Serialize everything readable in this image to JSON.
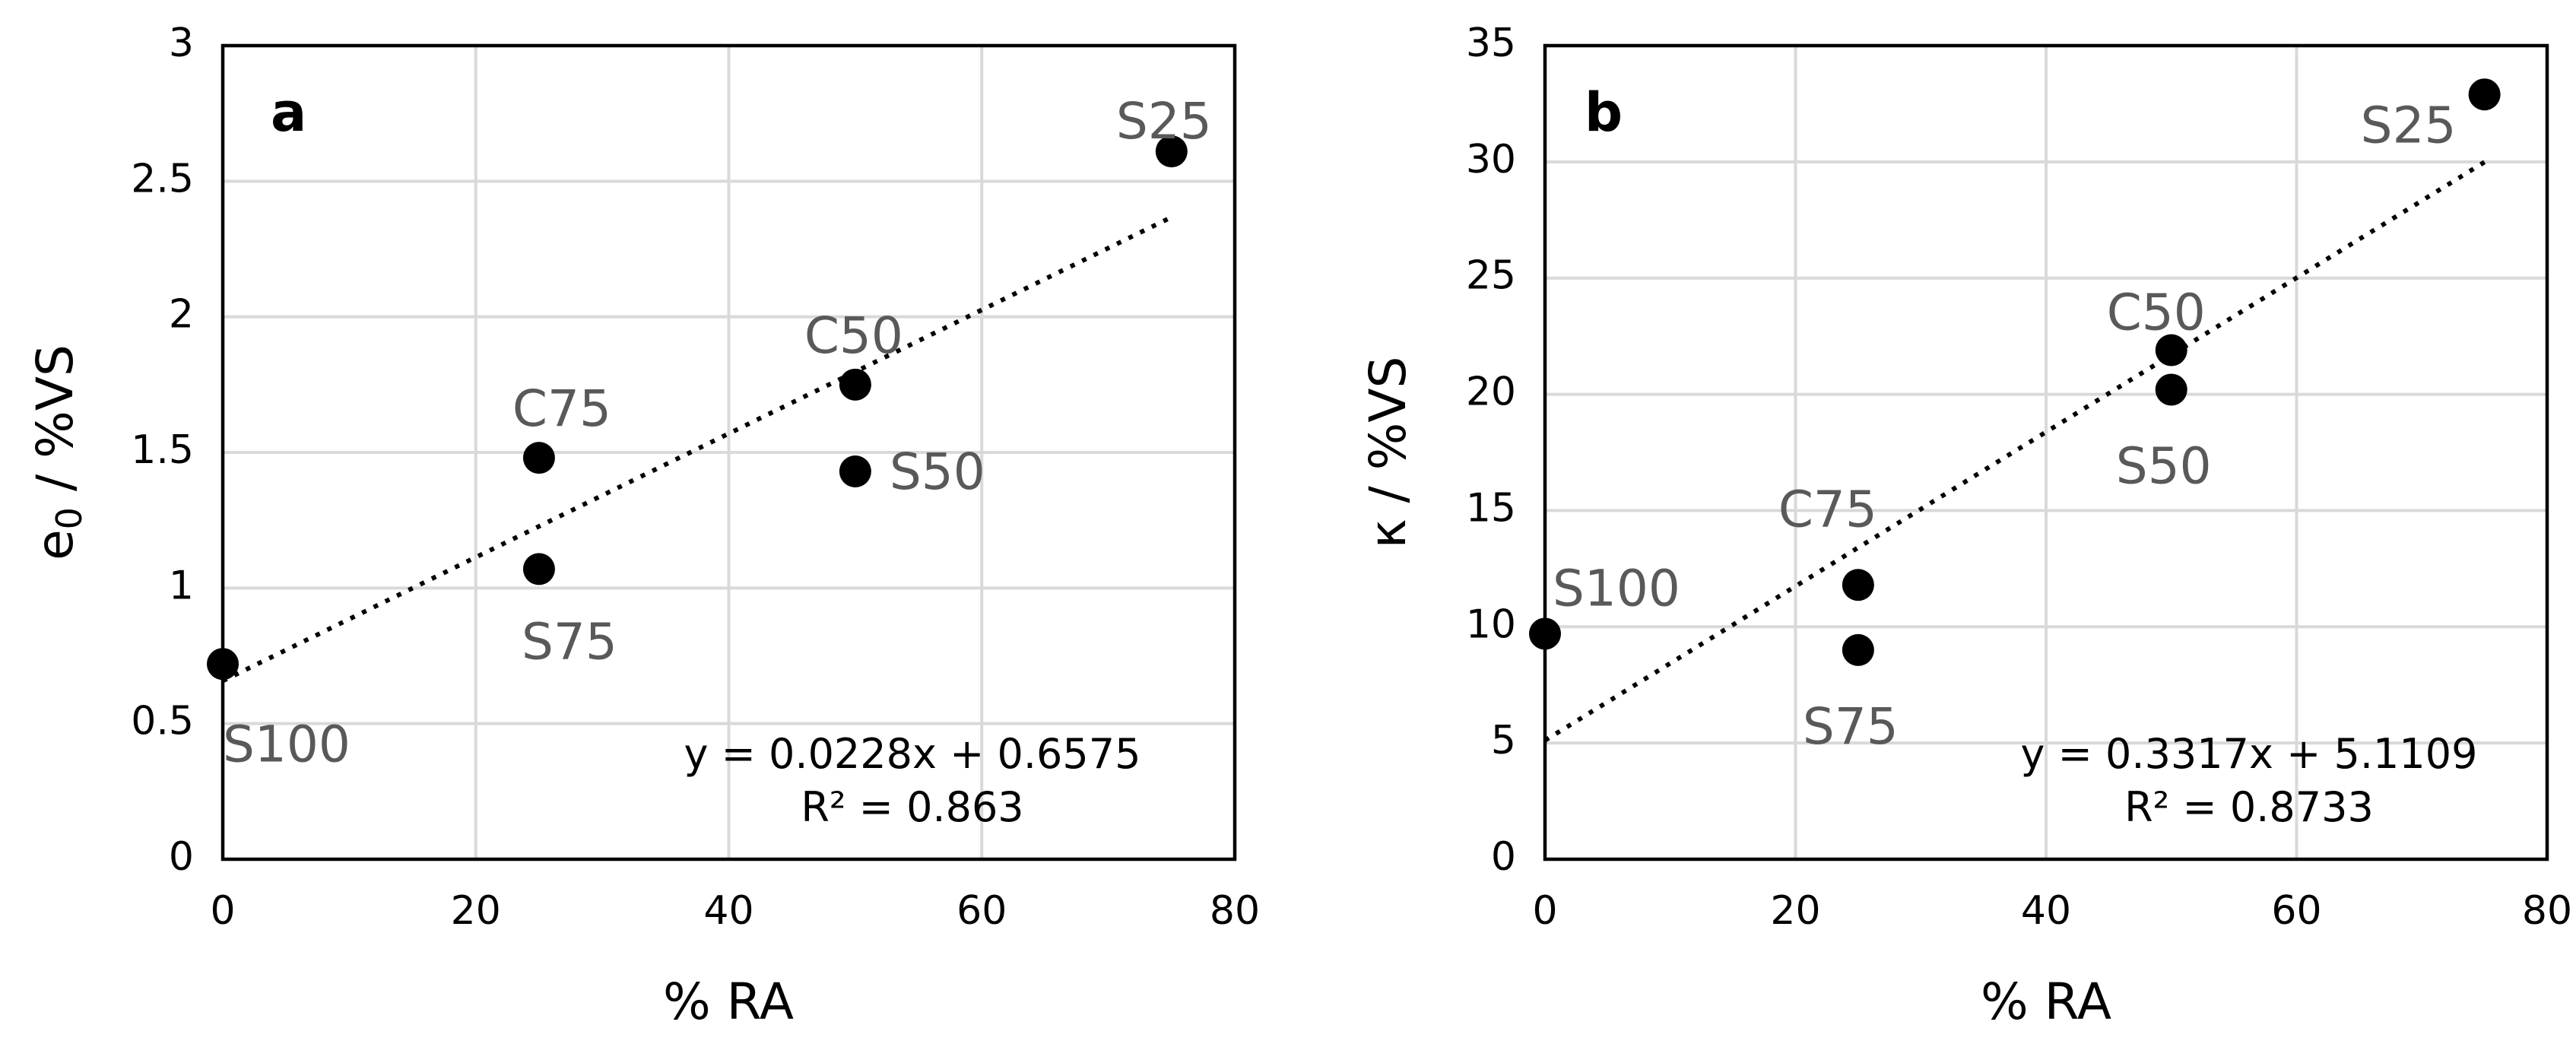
{
  "chart_data": [
    {
      "type": "scatter",
      "panel": "a",
      "xlabel": "% RA",
      "ylabel": "e0 / %VS",
      "ylabel_main": "e",
      "ylabel_sub": "0",
      "ylabel_rest": " / %VS",
      "xlim": [
        0,
        80
      ],
      "ylim": [
        0,
        3
      ],
      "xticks": [
        0,
        20,
        40,
        60,
        80
      ],
      "yticks": [
        0,
        0.5,
        1,
        1.5,
        2,
        2.5,
        3
      ],
      "xtick_labels": [
        "0",
        "20",
        "40",
        "60",
        "80"
      ],
      "ytick_labels": [
        "0",
        "0.5",
        "1",
        "1.5",
        "2",
        "2.5",
        "3"
      ],
      "grid": true,
      "points": [
        {
          "label": "S100",
          "x": 0,
          "y": 0.72
        },
        {
          "label": "S75",
          "x": 25,
          "y": 1.07
        },
        {
          "label": "C75",
          "x": 25,
          "y": 1.48
        },
        {
          "label": "C50",
          "x": 50,
          "y": 1.75
        },
        {
          "label": "S50",
          "x": 50,
          "y": 1.43
        },
        {
          "label": "S25",
          "x": 75,
          "y": 2.61
        }
      ],
      "trendline": {
        "slope": 0.0228,
        "intercept": 0.6575,
        "x_range": [
          0,
          75
        ],
        "style": "dotted"
      },
      "equation": "y = 0.0228x + 0.6575",
      "r2_text": "R² = 0.863"
    },
    {
      "type": "scatter",
      "panel": "b",
      "xlabel": "% RA",
      "ylabel": "κ / %VS",
      "xlim": [
        0,
        80
      ],
      "ylim": [
        0,
        35
      ],
      "xticks": [
        0,
        20,
        40,
        60,
        80
      ],
      "yticks": [
        0,
        5,
        10,
        15,
        20,
        25,
        30,
        35
      ],
      "xtick_labels": [
        "0",
        "20",
        "40",
        "60",
        "80"
      ],
      "ytick_labels": [
        "0",
        "5",
        "10",
        "15",
        "20",
        "25",
        "30",
        "35"
      ],
      "grid": true,
      "points": [
        {
          "label": "S100",
          "x": 0,
          "y": 9.7
        },
        {
          "label": "C75",
          "x": 25,
          "y": 11.8
        },
        {
          "label": "S75",
          "x": 25,
          "y": 9.0
        },
        {
          "label": "C50",
          "x": 50,
          "y": 21.9
        },
        {
          "label": "S50",
          "x": 50,
          "y": 20.2
        },
        {
          "label": "S25",
          "x": 75,
          "y": 32.9
        }
      ],
      "trendline": {
        "slope": 0.3317,
        "intercept": 5.1109,
        "x_range": [
          0,
          75
        ],
        "style": "dotted"
      },
      "equation": "y = 0.3317x + 5.1109",
      "r2_text": "R² = 0.8733"
    }
  ]
}
